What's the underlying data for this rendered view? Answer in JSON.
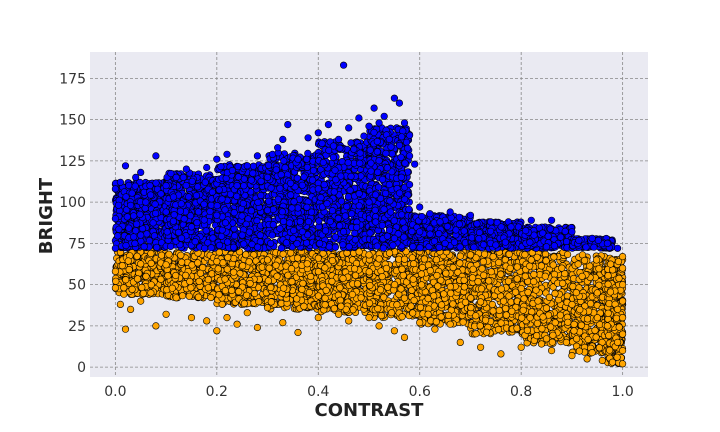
{
  "chart_data": {
    "type": "scatter",
    "title": "",
    "xlabel": "CONTRAST",
    "ylabel": "BRIGHT",
    "xlim": [
      -0.05,
      1.05
    ],
    "ylim": [
      -6,
      191
    ],
    "x_ticks": [
      0.0,
      0.2,
      0.4,
      0.6,
      0.8,
      1.0
    ],
    "x_tick_labels": [
      "0.0",
      "0.2",
      "0.4",
      "0.6",
      "0.8",
      "1.0"
    ],
    "y_ticks": [
      0,
      25,
      50,
      75,
      100,
      125,
      150,
      175
    ],
    "y_tick_labels": [
      "0",
      "25",
      "50",
      "75",
      "100",
      "125",
      "150",
      "175"
    ],
    "grid": true,
    "legend": "none",
    "colors": {
      "plot_background": "#eaeaf2",
      "grid": "#888888",
      "point_edge": "#000000"
    },
    "series": [
      {
        "color": "#0000ff",
        "points": [
          [
            0.0,
            72
          ],
          [
            0.0,
            90
          ],
          [
            0.0,
            108
          ],
          [
            0.01,
            112
          ],
          [
            0.02,
            122
          ],
          [
            0.03,
            98
          ],
          [
            0.04,
            115
          ],
          [
            0.05,
            118
          ],
          [
            0.06,
            100
          ],
          [
            0.08,
            128
          ],
          [
            0.09,
            105
          ],
          [
            0.1,
            110
          ],
          [
            0.1,
            94
          ],
          [
            0.12,
            115
          ],
          [
            0.13,
            99
          ],
          [
            0.14,
            120
          ],
          [
            0.16,
            104
          ],
          [
            0.18,
            121
          ],
          [
            0.2,
            126
          ],
          [
            0.22,
            129
          ],
          [
            0.24,
            110
          ],
          [
            0.26,
            122
          ],
          [
            0.28,
            128
          ],
          [
            0.3,
            115
          ],
          [
            0.32,
            133
          ],
          [
            0.33,
            138
          ],
          [
            0.34,
            147
          ],
          [
            0.36,
            126
          ],
          [
            0.38,
            139
          ],
          [
            0.4,
            142
          ],
          [
            0.41,
            124
          ],
          [
            0.42,
            147
          ],
          [
            0.43,
            134
          ],
          [
            0.44,
            138
          ],
          [
            0.45,
            183
          ],
          [
            0.46,
            145
          ],
          [
            0.47,
            132
          ],
          [
            0.48,
            151
          ],
          [
            0.49,
            140
          ],
          [
            0.5,
            146
          ],
          [
            0.51,
            157
          ],
          [
            0.52,
            148
          ],
          [
            0.53,
            152
          ],
          [
            0.54,
            138
          ],
          [
            0.55,
            163
          ],
          [
            0.56,
            160
          ],
          [
            0.57,
            148
          ],
          [
            0.58,
            128
          ],
          [
            0.59,
            123
          ],
          [
            0.6,
            97
          ],
          [
            0.62,
            93
          ],
          [
            0.64,
            88
          ],
          [
            0.66,
            94
          ],
          [
            0.7,
            92
          ],
          [
            0.74,
            88
          ],
          [
            0.78,
            85
          ],
          [
            0.82,
            89
          ],
          [
            0.86,
            89
          ],
          [
            0.9,
            82
          ],
          [
            0.94,
            78
          ],
          [
            0.97,
            75
          ],
          [
            0.99,
            72
          ],
          [
            0.05,
            80
          ],
          [
            0.15,
            85
          ],
          [
            0.25,
            80
          ],
          [
            0.35,
            78
          ],
          [
            0.45,
            82
          ],
          [
            0.55,
            78
          ],
          [
            0.65,
            75
          ],
          [
            0.75,
            74
          ],
          [
            0.85,
            73
          ],
          [
            0.3,
            95
          ],
          [
            0.5,
            100
          ],
          [
            0.4,
            108
          ],
          [
            0.2,
            92
          ],
          [
            0.6,
            82
          ]
        ],
        "density_bands": [
          {
            "x0": 0.0,
            "x1": 0.1,
            "y_low": 72,
            "y_high": 112,
            "count": 500
          },
          {
            "x0": 0.1,
            "x1": 0.2,
            "y_low": 72,
            "y_high": 118,
            "count": 500
          },
          {
            "x0": 0.2,
            "x1": 0.3,
            "y_low": 72,
            "y_high": 123,
            "count": 500
          },
          {
            "x0": 0.3,
            "x1": 0.4,
            "y_low": 72,
            "y_high": 130,
            "count": 500
          },
          {
            "x0": 0.4,
            "x1": 0.5,
            "y_low": 72,
            "y_high": 137,
            "count": 520
          },
          {
            "x0": 0.5,
            "x1": 0.58,
            "y_low": 72,
            "y_high": 145,
            "count": 520
          },
          {
            "x0": 0.58,
            "x1": 0.7,
            "y_low": 72,
            "y_high": 92,
            "count": 340
          },
          {
            "x0": 0.7,
            "x1": 0.8,
            "y_low": 72,
            "y_high": 88,
            "count": 300
          },
          {
            "x0": 0.8,
            "x1": 0.9,
            "y_low": 72,
            "y_high": 85,
            "count": 260
          },
          {
            "x0": 0.9,
            "x1": 0.98,
            "y_low": 72,
            "y_high": 78,
            "count": 160
          }
        ]
      },
      {
        "color": "#ffa500",
        "points": [
          [
            0.0,
            58
          ],
          [
            0.0,
            48
          ],
          [
            0.01,
            38
          ],
          [
            0.02,
            23
          ],
          [
            0.03,
            35
          ],
          [
            0.05,
            40
          ],
          [
            0.07,
            45
          ],
          [
            0.08,
            25
          ],
          [
            0.1,
            32
          ],
          [
            0.12,
            42
          ],
          [
            0.15,
            30
          ],
          [
            0.18,
            28
          ],
          [
            0.2,
            22
          ],
          [
            0.22,
            30
          ],
          [
            0.24,
            26
          ],
          [
            0.26,
            33
          ],
          [
            0.28,
            24
          ],
          [
            0.3,
            36
          ],
          [
            0.33,
            27
          ],
          [
            0.36,
            21
          ],
          [
            0.4,
            30
          ],
          [
            0.44,
            32
          ],
          [
            0.46,
            28
          ],
          [
            0.5,
            30
          ],
          [
            0.52,
            25
          ],
          [
            0.55,
            22
          ],
          [
            0.57,
            18
          ],
          [
            0.6,
            27
          ],
          [
            0.63,
            23
          ],
          [
            0.66,
            26
          ],
          [
            0.68,
            15
          ],
          [
            0.72,
            12
          ],
          [
            0.76,
            8
          ],
          [
            0.8,
            12
          ],
          [
            0.84,
            14
          ],
          [
            0.86,
            10
          ],
          [
            0.9,
            7
          ],
          [
            0.93,
            5
          ],
          [
            0.96,
            4
          ],
          [
            0.98,
            3
          ],
          [
            1.0,
            2
          ],
          [
            1.0,
            10
          ],
          [
            1.0,
            20
          ],
          [
            1.0,
            30
          ],
          [
            1.0,
            40
          ],
          [
            1.0,
            50
          ],
          [
            1.0,
            60
          ],
          [
            1.0,
            67
          ],
          [
            0.99,
            15
          ],
          [
            0.99,
            35
          ],
          [
            0.97,
            25
          ],
          [
            0.95,
            45
          ],
          [
            0.92,
            55
          ],
          [
            0.88,
            60
          ],
          [
            0.82,
            65
          ],
          [
            0.7,
            68
          ],
          [
            0.6,
            70
          ],
          [
            0.5,
            68
          ],
          [
            0.4,
            66
          ],
          [
            0.3,
            65
          ],
          [
            0.2,
            64
          ],
          [
            0.1,
            62
          ]
        ],
        "density_bands": [
          {
            "x0": 0.0,
            "x1": 0.1,
            "y_low": 44,
            "y_high": 70,
            "count": 320
          },
          {
            "x0": 0.1,
            "x1": 0.2,
            "y_low": 42,
            "y_high": 70,
            "count": 320
          },
          {
            "x0": 0.2,
            "x1": 0.3,
            "y_low": 38,
            "y_high": 70,
            "count": 340
          },
          {
            "x0": 0.3,
            "x1": 0.4,
            "y_low": 35,
            "y_high": 70,
            "count": 360
          },
          {
            "x0": 0.4,
            "x1": 0.5,
            "y_low": 33,
            "y_high": 70,
            "count": 380
          },
          {
            "x0": 0.5,
            "x1": 0.6,
            "y_low": 30,
            "y_high": 70,
            "count": 400
          },
          {
            "x0": 0.6,
            "x1": 0.7,
            "y_low": 26,
            "y_high": 70,
            "count": 400
          },
          {
            "x0": 0.7,
            "x1": 0.8,
            "y_low": 20,
            "y_high": 70,
            "count": 400
          },
          {
            "x0": 0.8,
            "x1": 0.9,
            "y_low": 14,
            "y_high": 70,
            "count": 400
          },
          {
            "x0": 0.9,
            "x1": 0.97,
            "y_low": 8,
            "y_high": 68,
            "count": 360
          },
          {
            "x0": 0.97,
            "x1": 1.0,
            "y_low": 2,
            "y_high": 66,
            "count": 320
          }
        ]
      }
    ]
  }
}
